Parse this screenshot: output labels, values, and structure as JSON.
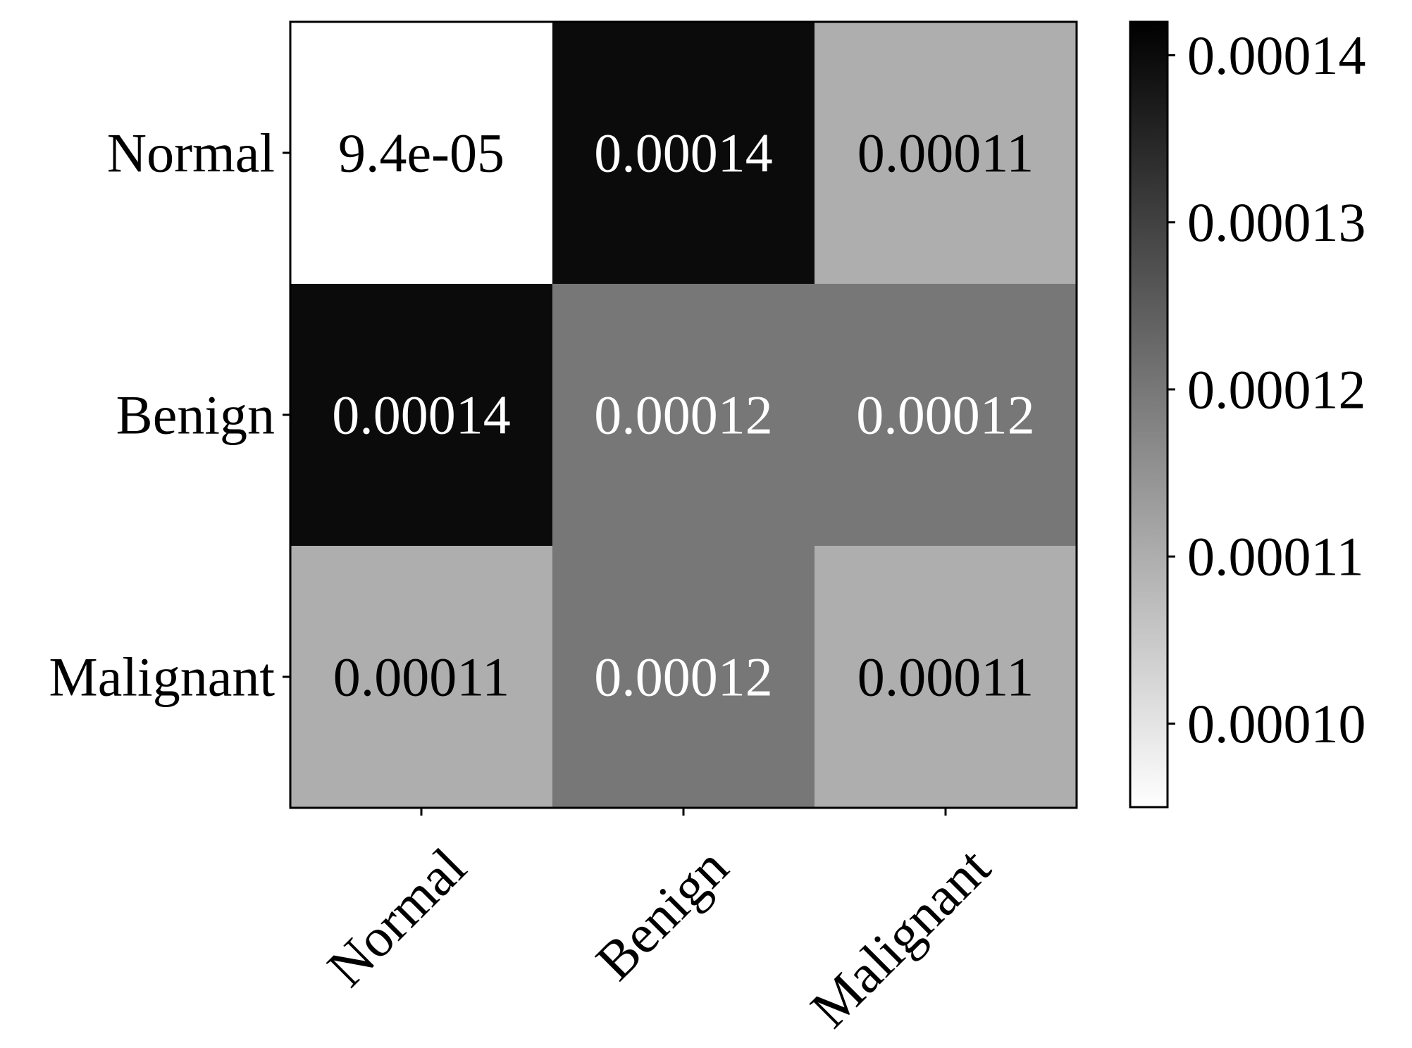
{
  "chart_data": {
    "type": "heatmap",
    "title": "",
    "xlabel": "",
    "ylabel": "",
    "x_categories": [
      "Normal",
      "Benign",
      "Malignant"
    ],
    "y_categories": [
      "Normal",
      "Benign",
      "Malignant"
    ],
    "values": [
      [
        9.4e-05,
        0.00014,
        0.00011
      ],
      [
        0.00014,
        0.00012,
        0.00012
      ],
      [
        0.00011,
        0.00012,
        0.00011
      ]
    ],
    "cell_labels": [
      [
        "9.4e-05",
        "0.00014",
        "0.00011"
      ],
      [
        "0.00014",
        "0.00012",
        "0.00012"
      ],
      [
        "0.00011",
        "0.00012",
        "0.00011"
      ]
    ],
    "colormap": "greys",
    "colorbar": {
      "range": [
        9.5e-05,
        0.000142
      ],
      "ticks": [
        0.0001,
        0.00011,
        0.00012,
        0.00013,
        0.00014
      ],
      "tick_labels": [
        "0.00010",
        "0.00011",
        "0.00012",
        "0.00013",
        "0.00014"
      ],
      "placement": "right"
    },
    "x_tick_rotation": 45,
    "grid": false,
    "colors": {
      "cmap_low": "#ffffff",
      "cmap_high": "#000000",
      "dark_text": "#000000",
      "light_text": "#ffffff"
    }
  }
}
